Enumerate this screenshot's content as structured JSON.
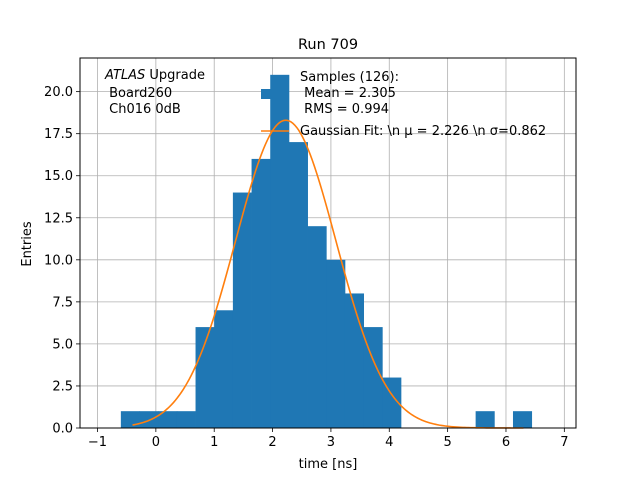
{
  "chart_data": {
    "type": "bar",
    "title": "Run 709",
    "xlabel": "time [ns]",
    "ylabel": "Entries",
    "xlim": [
      -1.3,
      7.2
    ],
    "ylim": [
      0,
      22
    ],
    "grid": true,
    "x_ticks": [
      -1,
      0,
      1,
      2,
      3,
      4,
      5,
      6,
      7
    ],
    "x_tick_labels": [
      "−1",
      "0",
      "1",
      "2",
      "3",
      "4",
      "5",
      "6",
      "7"
    ],
    "y_ticks": [
      0,
      2.5,
      5,
      7.5,
      10,
      12.5,
      15,
      17.5,
      20
    ],
    "y_tick_labels": [
      "0.0",
      "2.5",
      "5.0",
      "7.5",
      "10.0",
      "12.5",
      "15.0",
      "17.5",
      "20.0"
    ],
    "bins": {
      "edges": [
        -0.6,
        -0.28,
        0.04,
        0.36,
        0.68,
        1.0,
        1.32,
        1.64,
        1.96,
        2.28,
        2.6,
        2.92,
        3.24,
        3.56,
        3.88,
        4.2,
        4.52,
        4.84,
        5.16,
        5.48,
        5.8,
        6.12,
        6.44
      ],
      "counts": [
        1,
        1,
        1,
        1,
        6,
        7,
        14,
        16,
        21,
        17,
        12,
        10,
        8,
        6,
        3,
        0,
        0,
        0,
        0,
        1,
        0,
        1
      ],
      "color": "#1f77b4"
    },
    "fit": {
      "mu": 2.226,
      "sigma": 0.862,
      "amplitude": 18.3,
      "x_range": [
        -0.4,
        6.3
      ],
      "color": "#ff7f0e"
    },
    "legend": {
      "placement": "top-right",
      "entries": [
        {
          "marker": "bar",
          "color": "#1f77b4",
          "lines": [
            "Samples (126):",
            " Mean = 2.305",
            " RMS = 0.994"
          ]
        },
        {
          "marker": "line",
          "color": "#ff7f0e",
          "lines": [
            "Gaussian Fit: \\n μ = 2.226 \\n σ=0.862"
          ]
        }
      ]
    },
    "annotation": {
      "italic": "ATLAS",
      "rest": " Upgrade",
      "line2": " Board260",
      "line3": " Ch016 0dB"
    }
  }
}
